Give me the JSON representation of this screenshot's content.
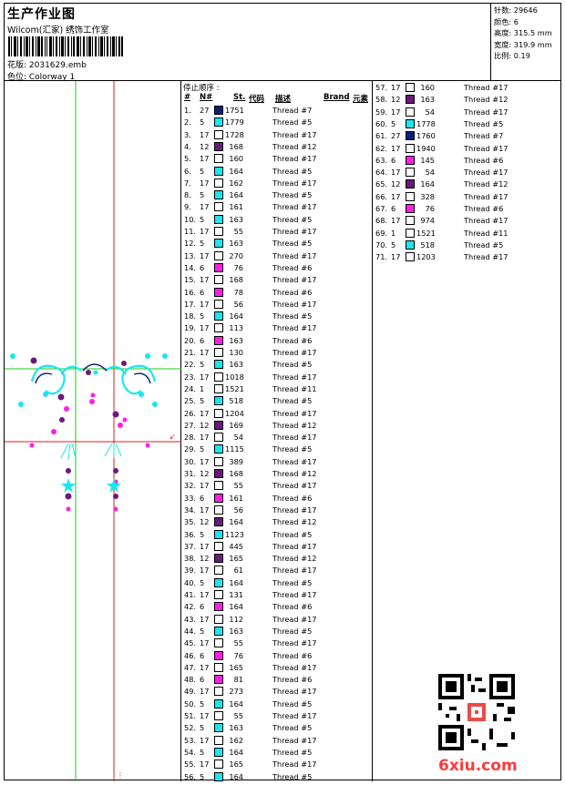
{
  "header": {
    "title": "生产作业图",
    "company": "Wilcom(汇家) 绣饰工作室",
    "file_label": "花版: 2031629.emb",
    "colorway_label": "色位: Colorway 1"
  },
  "stats": [
    "针数: 29646",
    "颜色: 6",
    "高度: 315.5 mm",
    "宽度: 319.9 mm",
    "比例: 0.19"
  ],
  "table": {
    "stop_label": "停止顺序 :",
    "headers": {
      "num": "#",
      "n": "N#",
      "st": "St.",
      "code": "代码",
      "desc": "描述",
      "brand": "Brand",
      "element": "元素"
    }
  },
  "colors": {
    "navy": "#0b1f7a",
    "cyan": "#19e6ee",
    "white": "#ffffff",
    "purple": "#6a1a7a",
    "magenta": "#ff1ee8",
    "guide_green": "#1ec81e",
    "guide_red": "#e01818",
    "logo_red": "#ff3a3a"
  },
  "rows_col1": [
    {
      "no": "1.",
      "n": "27",
      "code": "1751",
      "color": "navy",
      "desc": "Thread #7"
    },
    {
      "no": "2.",
      "n": "5",
      "code": "1779",
      "color": "cyan",
      "desc": "Thread #5"
    },
    {
      "no": "3.",
      "n": "17",
      "code": "1728",
      "color": "white",
      "desc": "Thread #17"
    },
    {
      "no": "4.",
      "n": "12",
      "code": "168",
      "color": "purple",
      "desc": "Thread #12"
    },
    {
      "no": "5.",
      "n": "17",
      "code": "160",
      "color": "white",
      "desc": "Thread #17"
    },
    {
      "no": "6.",
      "n": "5",
      "code": "164",
      "color": "cyan",
      "desc": "Thread #5"
    },
    {
      "no": "7.",
      "n": "17",
      "code": "162",
      "color": "white",
      "desc": "Thread #17"
    },
    {
      "no": "8.",
      "n": "5",
      "code": "164",
      "color": "cyan",
      "desc": "Thread #5"
    },
    {
      "no": "9.",
      "n": "17",
      "code": "161",
      "color": "white",
      "desc": "Thread #17"
    },
    {
      "no": "10.",
      "n": "5",
      "code": "163",
      "color": "cyan",
      "desc": "Thread #5"
    },
    {
      "no": "11.",
      "n": "17",
      "code": "55",
      "color": "white",
      "desc": "Thread #17"
    },
    {
      "no": "12.",
      "n": "5",
      "code": "163",
      "color": "cyan",
      "desc": "Thread #5"
    },
    {
      "no": "13.",
      "n": "17",
      "code": "270",
      "color": "white",
      "desc": "Thread #17"
    },
    {
      "no": "14.",
      "n": "6",
      "code": "76",
      "color": "magenta",
      "desc": "Thread #6"
    },
    {
      "no": "15.",
      "n": "17",
      "code": "168",
      "color": "white",
      "desc": "Thread #17"
    },
    {
      "no": "16.",
      "n": "6",
      "code": "78",
      "color": "magenta",
      "desc": "Thread #6"
    },
    {
      "no": "17.",
      "n": "17",
      "code": "56",
      "color": "white",
      "desc": "Thread #17"
    },
    {
      "no": "18.",
      "n": "5",
      "code": "164",
      "color": "cyan",
      "desc": "Thread #5"
    },
    {
      "no": "19.",
      "n": "17",
      "code": "113",
      "color": "white",
      "desc": "Thread #17"
    },
    {
      "no": "20.",
      "n": "6",
      "code": "163",
      "color": "magenta",
      "desc": "Thread #6"
    },
    {
      "no": "21.",
      "n": "17",
      "code": "130",
      "color": "white",
      "desc": "Thread #17"
    },
    {
      "no": "22.",
      "n": "5",
      "code": "163",
      "color": "cyan",
      "desc": "Thread #5"
    },
    {
      "no": "23.",
      "n": "17",
      "code": "1018",
      "color": "white",
      "desc": "Thread #17"
    },
    {
      "no": "24.",
      "n": "1",
      "code": "1521",
      "color": "white",
      "desc": "Thread #11"
    },
    {
      "no": "25.",
      "n": "5",
      "code": "518",
      "color": "cyan",
      "desc": "Thread #5"
    },
    {
      "no": "26.",
      "n": "17",
      "code": "1204",
      "color": "white",
      "desc": "Thread #17"
    },
    {
      "no": "27.",
      "n": "12",
      "code": "169",
      "color": "purple",
      "desc": "Thread #12"
    },
    {
      "no": "28.",
      "n": "17",
      "code": "54",
      "color": "white",
      "desc": "Thread #17"
    },
    {
      "no": "29.",
      "n": "5",
      "code": "1115",
      "color": "cyan",
      "desc": "Thread #5"
    },
    {
      "no": "30.",
      "n": "17",
      "code": "389",
      "color": "white",
      "desc": "Thread #17"
    },
    {
      "no": "31.",
      "n": "12",
      "code": "168",
      "color": "purple",
      "desc": "Thread #12"
    },
    {
      "no": "32.",
      "n": "17",
      "code": "55",
      "color": "white",
      "desc": "Thread #17"
    },
    {
      "no": "33.",
      "n": "6",
      "code": "161",
      "color": "magenta",
      "desc": "Thread #6"
    },
    {
      "no": "34.",
      "n": "17",
      "code": "56",
      "color": "white",
      "desc": "Thread #17"
    },
    {
      "no": "35.",
      "n": "12",
      "code": "164",
      "color": "purple",
      "desc": "Thread #12"
    },
    {
      "no": "36.",
      "n": "5",
      "code": "1123",
      "color": "cyan",
      "desc": "Thread #5"
    },
    {
      "no": "37.",
      "n": "17",
      "code": "445",
      "color": "white",
      "desc": "Thread #17"
    },
    {
      "no": "38.",
      "n": "12",
      "code": "165",
      "color": "purple",
      "desc": "Thread #12"
    },
    {
      "no": "39.",
      "n": "17",
      "code": "61",
      "color": "white",
      "desc": "Thread #17"
    },
    {
      "no": "40.",
      "n": "5",
      "code": "164",
      "color": "cyan",
      "desc": "Thread #5"
    },
    {
      "no": "41.",
      "n": "17",
      "code": "131",
      "color": "white",
      "desc": "Thread #17"
    },
    {
      "no": "42.",
      "n": "6",
      "code": "164",
      "color": "magenta",
      "desc": "Thread #6"
    },
    {
      "no": "43.",
      "n": "17",
      "code": "112",
      "color": "white",
      "desc": "Thread #17"
    },
    {
      "no": "44.",
      "n": "5",
      "code": "163",
      "color": "cyan",
      "desc": "Thread #5"
    },
    {
      "no": "45.",
      "n": "17",
      "code": "55",
      "color": "white",
      "desc": "Thread #17"
    },
    {
      "no": "46.",
      "n": "6",
      "code": "76",
      "color": "magenta",
      "desc": "Thread #6"
    },
    {
      "no": "47.",
      "n": "17",
      "code": "165",
      "color": "white",
      "desc": "Thread #17"
    },
    {
      "no": "48.",
      "n": "6",
      "code": "81",
      "color": "magenta",
      "desc": "Thread #6"
    },
    {
      "no": "49.",
      "n": "17",
      "code": "273",
      "color": "white",
      "desc": "Thread #17"
    },
    {
      "no": "50.",
      "n": "5",
      "code": "164",
      "color": "cyan",
      "desc": "Thread #5"
    },
    {
      "no": "51.",
      "n": "17",
      "code": "55",
      "color": "white",
      "desc": "Thread #17"
    },
    {
      "no": "52.",
      "n": "5",
      "code": "163",
      "color": "cyan",
      "desc": "Thread #5"
    },
    {
      "no": "53.",
      "n": "17",
      "code": "162",
      "color": "white",
      "desc": "Thread #17"
    },
    {
      "no": "54.",
      "n": "5",
      "code": "164",
      "color": "cyan",
      "desc": "Thread #5"
    },
    {
      "no": "55.",
      "n": "17",
      "code": "165",
      "color": "white",
      "desc": "Thread #17"
    },
    {
      "no": "56.",
      "n": "5",
      "code": "164",
      "color": "cyan",
      "desc": "Thread #5"
    }
  ],
  "rows_col2": [
    {
      "no": "57.",
      "n": "17",
      "code": "160",
      "color": "white",
      "desc": "Thread #17"
    },
    {
      "no": "58.",
      "n": "12",
      "code": "163",
      "color": "purple",
      "desc": "Thread #12"
    },
    {
      "no": "59.",
      "n": "17",
      "code": "54",
      "color": "white",
      "desc": "Thread #17"
    },
    {
      "no": "60.",
      "n": "5",
      "code": "1778",
      "color": "cyan",
      "desc": "Thread #5"
    },
    {
      "no": "61.",
      "n": "27",
      "code": "1760",
      "color": "navy",
      "desc": "Thread #7"
    },
    {
      "no": "62.",
      "n": "17",
      "code": "1940",
      "color": "white",
      "desc": "Thread #17"
    },
    {
      "no": "63.",
      "n": "6",
      "code": "145",
      "color": "magenta",
      "desc": "Thread #6"
    },
    {
      "no": "64.",
      "n": "17",
      "code": "54",
      "color": "white",
      "desc": "Thread #17"
    },
    {
      "no": "65.",
      "n": "12",
      "code": "164",
      "color": "purple",
      "desc": "Thread #12"
    },
    {
      "no": "66.",
      "n": "17",
      "code": "328",
      "color": "white",
      "desc": "Thread #17"
    },
    {
      "no": "67.",
      "n": "6",
      "code": "76",
      "color": "magenta",
      "desc": "Thread #6"
    },
    {
      "no": "68.",
      "n": "17",
      "code": "974",
      "color": "white",
      "desc": "Thread #17"
    },
    {
      "no": "69.",
      "n": "1",
      "code": "1521",
      "color": "white",
      "desc": "Thread #11"
    },
    {
      "no": "70.",
      "n": "5",
      "code": "518",
      "color": "cyan",
      "desc": "Thread #5"
    },
    {
      "no": "71.",
      "n": "17",
      "code": "1203",
      "color": "white",
      "desc": "Thread #17"
    }
  ],
  "watermark": {
    "logo_text": "6xiu.com",
    "qr_icon": "qr-code-icon",
    "stamp_icon": "red-seal-icon"
  }
}
